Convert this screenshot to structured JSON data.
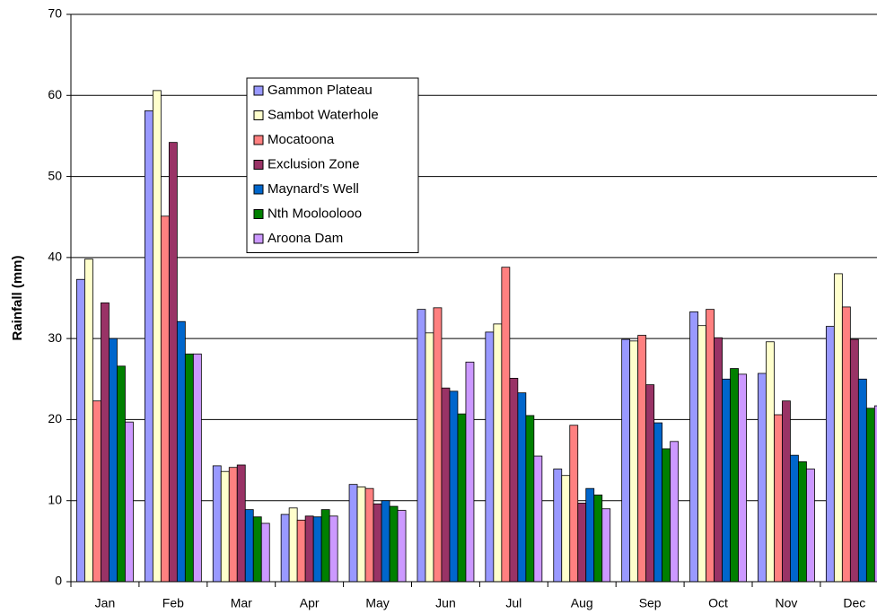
{
  "chart_data": {
    "type": "bar",
    "y_label": "Rainfall (mm)",
    "categories": [
      "Jan",
      "Feb",
      "Mar",
      "Apr",
      "May",
      "Jun",
      "Jul",
      "Aug",
      "Sep",
      "Oct",
      "Nov",
      "Dec"
    ],
    "series": [
      {
        "name": "Gammon Plateau",
        "color": "#9999ff",
        "values": [
          37.3,
          58.1,
          14.3,
          8.3,
          12.0,
          33.6,
          30.8,
          13.9,
          29.9,
          33.3,
          25.7,
          31.5
        ]
      },
      {
        "name": "Sambot Waterhole",
        "color": "#ffffcc",
        "values": [
          39.8,
          60.6,
          13.6,
          9.1,
          11.7,
          30.7,
          31.8,
          13.1,
          29.7,
          31.6,
          29.6,
          38.0
        ]
      },
      {
        "name": "Mocatoona",
        "color": "#ff8080",
        "values": [
          22.3,
          45.1,
          14.1,
          7.6,
          11.5,
          33.8,
          38.8,
          19.3,
          30.4,
          33.6,
          20.6,
          33.9
        ]
      },
      {
        "name": "Exclusion Zone",
        "color": "#993366",
        "values": [
          34.4,
          54.2,
          14.4,
          8.1,
          9.6,
          23.9,
          25.1,
          9.7,
          24.3,
          30.1,
          22.3,
          29.9
        ]
      },
      {
        "name": "Maynard's Well",
        "color": "#0066cc",
        "values": [
          30.0,
          32.1,
          8.9,
          8.0,
          10.0,
          23.5,
          23.3,
          11.5,
          19.6,
          25.0,
          15.6,
          25.0
        ]
      },
      {
        "name": "Nth Mooloolooo",
        "color": "#008000",
        "values": [
          26.6,
          28.1,
          8.0,
          8.9,
          9.3,
          20.7,
          20.5,
          10.7,
          16.4,
          26.3,
          14.8,
          21.4
        ]
      },
      {
        "name": "Aroona Dam",
        "color": "#cc99ff",
        "values": [
          19.7,
          28.1,
          7.2,
          8.1,
          8.8,
          27.1,
          15.5,
          9.0,
          17.3,
          25.6,
          13.9,
          21.7
        ]
      }
    ],
    "ylim": [
      0,
      70
    ],
    "yticks": [
      0,
      10,
      20,
      30,
      40,
      50,
      60,
      70
    ],
    "grid": true
  }
}
